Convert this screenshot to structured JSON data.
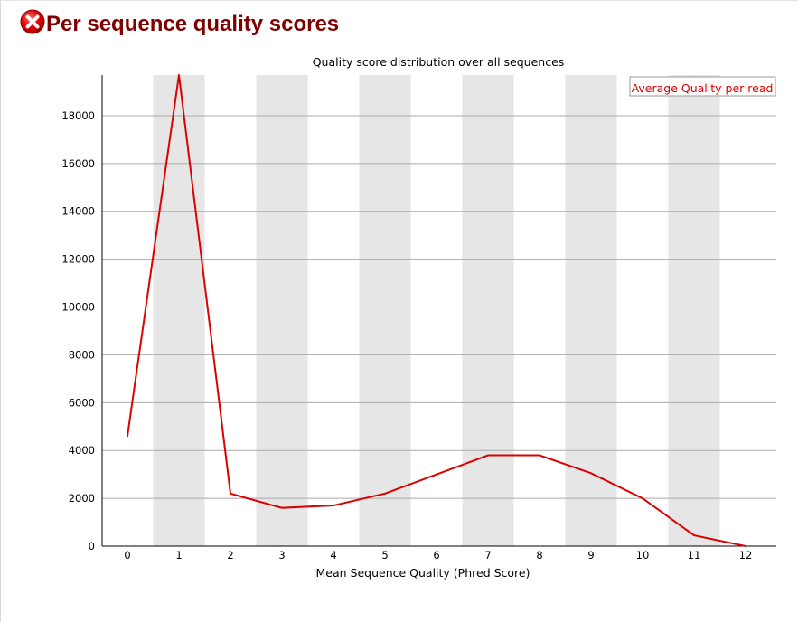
{
  "header": {
    "status_icon": "error-cross-icon",
    "status": "fail",
    "title": "Per sequence quality scores"
  },
  "colors": {
    "title": "#800000",
    "line": "#dd0000",
    "band": "#e6e6e6",
    "grid": "#aaaaaa",
    "icon": "#e00000"
  },
  "chart_data": {
    "type": "line",
    "title": "Quality score distribution over all sequences",
    "xlabel": "Mean Sequence Quality (Phred Score)",
    "ylabel": "",
    "x": [
      0,
      1,
      2,
      3,
      4,
      5,
      6,
      7,
      8,
      9,
      10,
      11,
      12
    ],
    "categories": [
      "0",
      "1",
      "2",
      "3",
      "4",
      "5",
      "6",
      "7",
      "8",
      "9",
      "10",
      "11",
      "12"
    ],
    "series": [
      {
        "name": "Average Quality per read",
        "values": [
          4600,
          19700,
          2200,
          1600,
          1700,
          2200,
          3000,
          3800,
          3800,
          3050,
          2000,
          450,
          0
        ]
      }
    ],
    "yticks": [
      0,
      2000,
      4000,
      6000,
      8000,
      10000,
      12000,
      14000,
      16000,
      18000
    ],
    "ylim": [
      0,
      19700
    ],
    "grid": true,
    "alternating_bands": true,
    "legend_position": "top-right"
  }
}
